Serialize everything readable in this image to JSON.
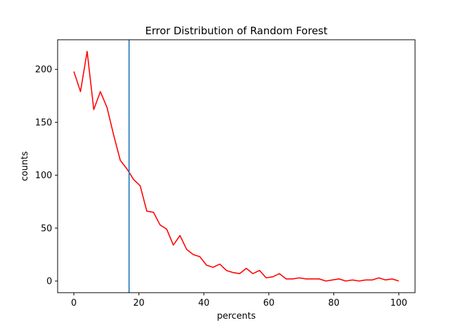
{
  "chart_data": {
    "type": "line",
    "title": "Error Distribution of Random Forest",
    "xlabel": "percents",
    "ylabel": "counts",
    "xlim": [
      -5,
      105
    ],
    "ylim": [
      -11,
      228
    ],
    "xticks": [
      0,
      20,
      40,
      60,
      80,
      100
    ],
    "yticks": [
      0,
      50,
      100,
      150,
      200
    ],
    "grid": false,
    "series": [
      {
        "color": "#ff0000",
        "x": [
          0,
          2.04,
          4.08,
          6.12,
          8.16,
          10.2,
          12.24,
          14.29,
          16.33,
          18.37,
          20.41,
          22.45,
          24.49,
          26.53,
          28.57,
          30.61,
          32.65,
          34.69,
          36.73,
          38.78,
          40.82,
          42.86,
          44.9,
          46.94,
          48.98,
          51.02,
          53.06,
          55.1,
          57.14,
          59.18,
          61.22,
          63.27,
          65.31,
          67.35,
          69.39,
          71.43,
          73.47,
          75.51,
          77.55,
          79.59,
          81.63,
          83.67,
          85.71,
          87.76,
          89.8,
          91.84,
          93.88,
          95.92,
          97.96,
          100
        ],
        "y": [
          198,
          179,
          217,
          162,
          179,
          164,
          138,
          114,
          106,
          96,
          90,
          66,
          65,
          53,
          49,
          34,
          43,
          30,
          25,
          23,
          15,
          13,
          16,
          10,
          8,
          7,
          12,
          7,
          10,
          3,
          4,
          7,
          2,
          2,
          3,
          2,
          2,
          2,
          0,
          1,
          2,
          0,
          1,
          0,
          1,
          1,
          3,
          1,
          2,
          0
        ]
      }
    ],
    "vline": {
      "x": 17,
      "color": "#1f77b4"
    }
  }
}
